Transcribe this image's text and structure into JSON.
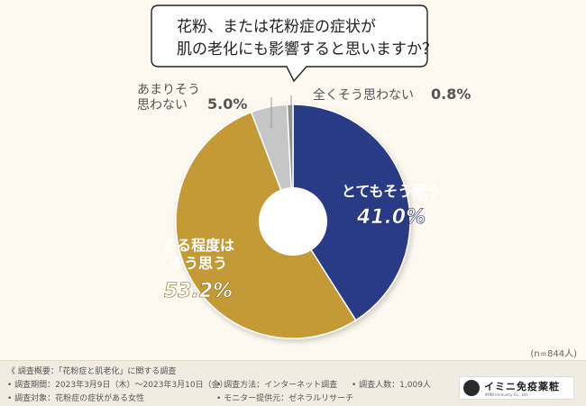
{
  "chart_data": {
    "type": "pie",
    "title_line1": "花粉、または花粉症の症状が",
    "title_line2": "肌の老化にも影響すると思いますか？",
    "total_label": "(n=844人)",
    "slices": [
      {
        "label_lines": [
          "とてもそう思う"
        ],
        "value": 41.0,
        "value_label": "41.0%",
        "color": "#2a3a85"
      },
      {
        "label_lines": [
          "ある程度は",
          "そう思う"
        ],
        "value": 53.2,
        "value_label": "53.2%",
        "color": "#c39a36"
      },
      {
        "label_lines": [
          "あまりそう",
          "思わない"
        ],
        "value": 5.0,
        "value_label": "5.0%",
        "color": "#c6c6c6"
      },
      {
        "label_lines": [
          "全くそう思わない"
        ],
        "value": 0.8,
        "value_label": "0.8%",
        "color": "#8f8f8f"
      }
    ]
  },
  "footer": {
    "overview": "《 調査概要：「花粉症と肌老化」に関する調査",
    "period": "• 調査期間：2023年3月9日（木）～2023年3月10日（金）",
    "method": "• 調査方法：インターネット調査",
    "count": "• 調査人数：1,009人",
    "target": "• 調査対象：花粉症の症状がある女性",
    "monitor": "• モニター提供元：ゼネラルリサーチ"
  },
  "logo": {
    "name": "イミニ免疫薬粧",
    "sub": "IMINI Immunity Co., Ltd."
  }
}
